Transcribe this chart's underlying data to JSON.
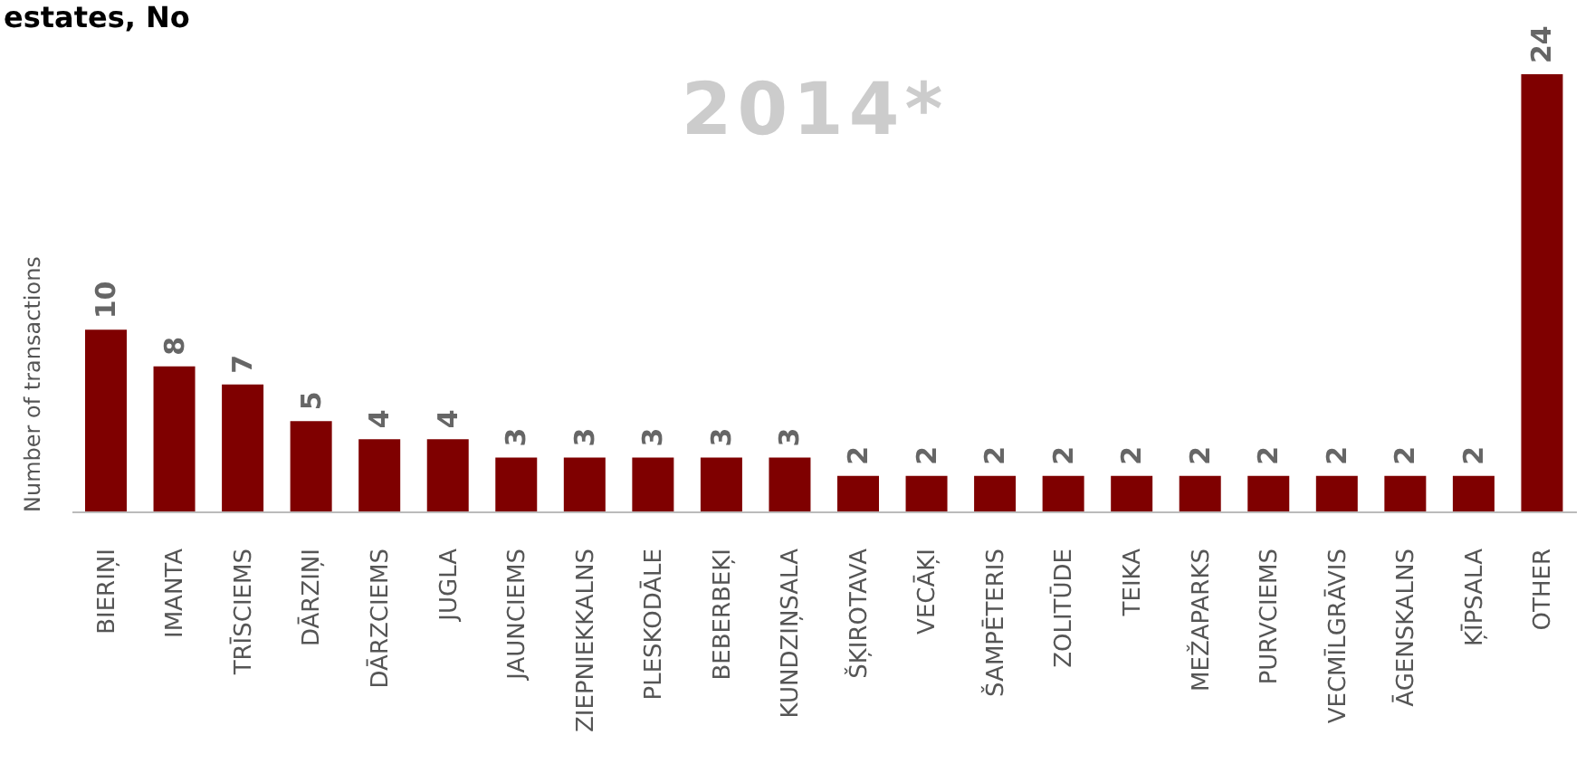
{
  "chart_data": {
    "type": "bar",
    "title": "estates, No",
    "ylabel": "Number of transactions",
    "annotations": [
      "2014*"
    ],
    "categories": [
      "BIERIŅI",
      "IMANTA",
      "TRĪSCIEMS",
      "DĀRZIŅI",
      "DĀRZCIEMS",
      "JUGLA",
      "JAUNCIEMS",
      "ZIEPNIEKKALNS",
      "PLESKODĀLE",
      "BEBERBEĶI",
      "KUNDZIŅSALA",
      "ŠĶIROTAVA",
      "VECĀĶI",
      "ŠAMPĒTERIS",
      "ZOLITŪDE",
      "TEIKA",
      "MEŽAPARKS",
      "PURVCIEMS",
      "VECMĪLGRĀVIS",
      "ĀGENSKALNS",
      "ĶĪPSALA",
      "OTHER"
    ],
    "values": [
      10,
      8,
      7,
      5,
      4,
      4,
      3,
      3,
      3,
      3,
      3,
      2,
      2,
      2,
      2,
      2,
      2,
      2,
      2,
      2,
      2,
      24
    ],
    "color": "#7f0000",
    "data_labels": true
  }
}
